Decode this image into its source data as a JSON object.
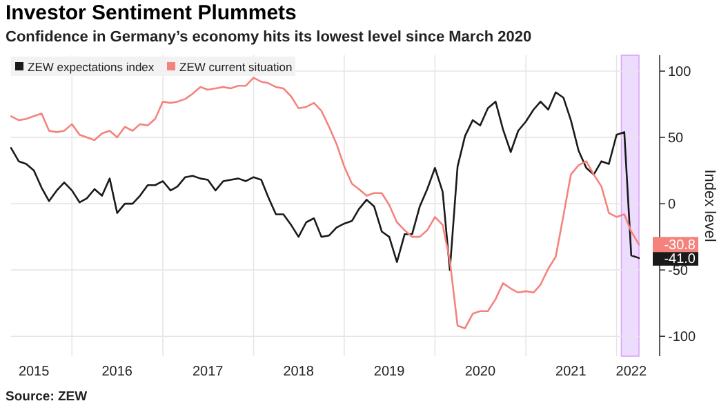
{
  "chart_data": {
    "type": "line",
    "title": "Investor Sentiment Plummets",
    "subtitle": "Confidence in Germany’s economy hits its lowest level since March 2020",
    "ylabel": "Index level",
    "annotations": [
      "Source: ZEW"
    ],
    "x": [
      "2015-05",
      "2015-06",
      "2015-07",
      "2015-08",
      "2015-09",
      "2015-10",
      "2015-11",
      "2015-12",
      "2016-01",
      "2016-02",
      "2016-03",
      "2016-04",
      "2016-05",
      "2016-06",
      "2016-07",
      "2016-08",
      "2016-09",
      "2016-10",
      "2016-11",
      "2016-12",
      "2017-01",
      "2017-02",
      "2017-03",
      "2017-04",
      "2017-05",
      "2017-06",
      "2017-07",
      "2017-08",
      "2017-09",
      "2017-10",
      "2017-11",
      "2017-12",
      "2018-01",
      "2018-02",
      "2018-03",
      "2018-04",
      "2018-05",
      "2018-06",
      "2018-07",
      "2018-08",
      "2018-09",
      "2018-10",
      "2018-11",
      "2018-12",
      "2019-01",
      "2019-02",
      "2019-03",
      "2019-04",
      "2019-05",
      "2019-06",
      "2019-07",
      "2019-08",
      "2019-09",
      "2019-10",
      "2019-11",
      "2019-12",
      "2020-01",
      "2020-02",
      "2020-03",
      "2020-04",
      "2020-05",
      "2020-06",
      "2020-07",
      "2020-08",
      "2020-09",
      "2020-10",
      "2020-11",
      "2020-12",
      "2021-01",
      "2021-02",
      "2021-03",
      "2021-04",
      "2021-05",
      "2021-06",
      "2021-07",
      "2021-08",
      "2021-09",
      "2021-10",
      "2021-11",
      "2021-12",
      "2022-01",
      "2022-02",
      "2022-03",
      "2022-04"
    ],
    "series": [
      {
        "name": "ZEW expectations index",
        "color": "#1a1a1a",
        "values": [
          42,
          32,
          30,
          25,
          12,
          2,
          10,
          16,
          10,
          1,
          4,
          11,
          6,
          19,
          -7,
          0,
          0,
          6,
          14,
          14,
          17,
          10,
          13,
          20,
          21,
          19,
          18,
          10,
          17,
          18,
          19,
          17,
          20,
          18,
          5,
          -8,
          -8,
          -16,
          -25,
          -14,
          -11,
          -25,
          -24,
          -18,
          -15,
          -13,
          -4,
          3,
          -2,
          -21,
          -25,
          -44,
          -23,
          -23,
          -2,
          11,
          27,
          9,
          -50,
          28,
          51,
          63,
          59,
          72,
          77,
          56,
          39,
          55,
          62,
          71,
          77,
          71,
          84,
          80,
          63,
          40,
          27,
          22,
          32,
          30,
          52,
          54,
          -39,
          -41.0
        ],
        "value_labels": [
          null,
          null,
          null,
          null,
          null,
          null,
          null,
          null,
          null,
          null,
          null,
          null,
          null,
          null,
          null,
          null,
          null,
          null,
          null,
          null,
          null,
          null,
          null,
          null,
          null,
          null,
          null,
          null,
          null,
          null,
          null,
          null,
          null,
          null,
          null,
          null,
          null,
          null,
          null,
          null,
          null,
          null,
          null,
          null,
          null,
          null,
          null,
          null,
          null,
          null,
          null,
          null,
          null,
          null,
          null,
          null,
          null,
          null,
          null,
          null,
          null,
          null,
          null,
          null,
          null,
          null,
          null,
          null,
          null,
          null,
          null,
          null,
          null,
          null,
          null,
          null,
          null,
          null,
          null,
          null,
          null,
          null,
          null,
          "-41.0"
        ]
      },
      {
        "name": "ZEW current situation",
        "color": "#f4837d",
        "values": [
          66,
          63,
          64,
          66,
          68,
          55,
          54,
          55,
          60,
          52,
          50,
          48,
          53,
          55,
          50,
          58,
          55,
          60,
          59,
          64,
          77,
          76,
          77,
          79,
          83,
          88,
          86,
          87,
          88,
          87,
          89,
          89,
          95,
          92,
          91,
          88,
          87,
          81,
          72,
          73,
          76,
          70,
          58,
          45,
          28,
          15,
          11,
          6,
          8,
          8,
          -1,
          -14,
          -20,
          -25,
          -25,
          -20,
          -10,
          -16,
          -43,
          -92,
          -94,
          -83,
          -81,
          -81,
          -72,
          -60,
          -64,
          -67,
          -66,
          -67,
          -61,
          -49,
          -40,
          -9,
          22,
          29,
          32,
          22,
          13,
          -7,
          -10,
          -8,
          -21,
          -30.8
        ],
        "value_labels": [
          null,
          null,
          null,
          null,
          null,
          null,
          null,
          null,
          null,
          null,
          null,
          null,
          null,
          null,
          null,
          null,
          null,
          null,
          null,
          null,
          null,
          null,
          null,
          null,
          null,
          null,
          null,
          null,
          null,
          null,
          null,
          null,
          null,
          null,
          null,
          null,
          null,
          null,
          null,
          null,
          null,
          null,
          null,
          null,
          null,
          null,
          null,
          null,
          null,
          null,
          null,
          null,
          null,
          null,
          null,
          null,
          null,
          null,
          null,
          null,
          null,
          null,
          null,
          null,
          null,
          null,
          null,
          null,
          null,
          null,
          null,
          null,
          null,
          null,
          null,
          null,
          null,
          null,
          null,
          null,
          null,
          null,
          null,
          "-30.8"
        ]
      }
    ],
    "xlim": [
      "2015-05",
      "2022-04"
    ],
    "xticks": [
      {
        "value": "2015-08",
        "label": "2015"
      },
      {
        "value": "2016-01",
        "label": null
      },
      {
        "value": "2016-07",
        "label": "2016"
      },
      {
        "value": "2017-01",
        "label": null
      },
      {
        "value": "2017-07",
        "label": "2017"
      },
      {
        "value": "2018-01",
        "label": null
      },
      {
        "value": "2018-07",
        "label": "2018"
      },
      {
        "value": "2019-01",
        "label": null
      },
      {
        "value": "2019-07",
        "label": "2019"
      },
      {
        "value": "2020-01",
        "label": null
      },
      {
        "value": "2020-07",
        "label": "2020"
      },
      {
        "value": "2021-01",
        "label": null
      },
      {
        "value": "2021-07",
        "label": "2021"
      },
      {
        "value": "2022-01",
        "label": null
      },
      {
        "value": "2022-03",
        "label": "2022"
      }
    ],
    "ylim": [
      -115,
      112
    ],
    "yticks": [
      -100,
      -50,
      0,
      50,
      100
    ],
    "bands": [
      {
        "axis": "x",
        "from": "2022-01-20",
        "to": "2022-04",
        "label": null,
        "color": "#eedcff"
      }
    ],
    "grid": true,
    "legend": "top left",
    "marker": "none",
    "line_style": "solid"
  }
}
